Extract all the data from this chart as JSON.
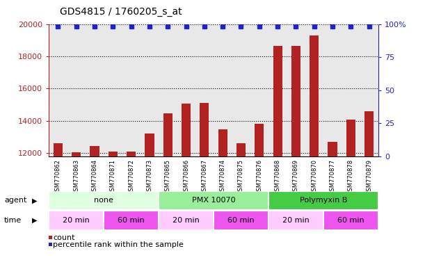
{
  "title": "GDS4815 / 1760205_s_at",
  "samples": [
    "GSM770862",
    "GSM770863",
    "GSM770864",
    "GSM770871",
    "GSM770872",
    "GSM770873",
    "GSM770865",
    "GSM770866",
    "GSM770867",
    "GSM770874",
    "GSM770875",
    "GSM770876",
    "GSM770868",
    "GSM770869",
    "GSM770870",
    "GSM770877",
    "GSM770878",
    "GSM770879"
  ],
  "counts": [
    12600,
    12050,
    12450,
    12100,
    12100,
    13200,
    14450,
    15050,
    15100,
    13450,
    12600,
    13800,
    18650,
    18650,
    19300,
    12700,
    14050,
    14600
  ],
  "percentile_ranks": [
    98,
    98,
    98,
    98,
    98,
    98,
    98,
    98,
    98,
    98,
    98,
    98,
    98,
    98,
    98,
    98,
    98,
    98
  ],
  "bar_color": "#b22222",
  "dot_color": "#2222cc",
  "ylim_left": [
    11800,
    20000
  ],
  "ylim_right": [
    0,
    100
  ],
  "yticks_left": [
    12000,
    14000,
    16000,
    18000,
    20000
  ],
  "ytick_labels_left": [
    "12000",
    "14000",
    "16000",
    "18000",
    "20000"
  ],
  "yticks_right": [
    0,
    25,
    50,
    75,
    100
  ],
  "ytick_labels_right": [
    "0",
    "25",
    "50",
    "75",
    "100%"
  ],
  "agent_groups": [
    {
      "label": "none",
      "start": 0,
      "end": 6,
      "color": "#e0ffe0"
    },
    {
      "label": "PMX 10070",
      "start": 6,
      "end": 12,
      "color": "#99ee99"
    },
    {
      "label": "Polymyxin B",
      "start": 12,
      "end": 18,
      "color": "#44cc44"
    }
  ],
  "time_groups": [
    {
      "label": "20 min",
      "start": 0,
      "end": 3,
      "color": "#ffccff"
    },
    {
      "label": "60 min",
      "start": 3,
      "end": 6,
      "color": "#ee55ee"
    },
    {
      "label": "20 min",
      "start": 6,
      "end": 9,
      "color": "#ffccff"
    },
    {
      "label": "60 min",
      "start": 9,
      "end": 12,
      "color": "#ee55ee"
    },
    {
      "label": "20 min",
      "start": 12,
      "end": 15,
      "color": "#ffccff"
    },
    {
      "label": "60 min",
      "start": 15,
      "end": 18,
      "color": "#ee55ee"
    }
  ],
  "legend_count_label": "count",
  "legend_pct_label": "percentile rank within the sample",
  "background_color": "#ffffff",
  "plot_bg_color": "#e8e8e8"
}
